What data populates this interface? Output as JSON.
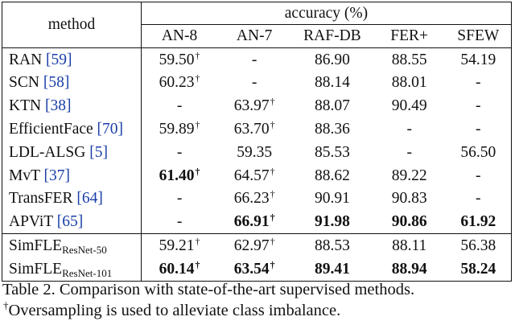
{
  "table": {
    "method_header": "method",
    "group_header": "accuracy (%)",
    "columns": [
      "AN-8",
      "AN-7",
      "RAF-DB",
      "FER+",
      "SFEW"
    ],
    "dagger": "†",
    "rows": [
      {
        "name": "RAN",
        "ref": "59",
        "cells": [
          {
            "v": "59.50",
            "sup": "†",
            "b": false
          },
          {
            "v": "-",
            "sup": "",
            "b": false
          },
          {
            "v": "86.90",
            "sup": "",
            "b": false
          },
          {
            "v": "88.55",
            "sup": "",
            "b": false
          },
          {
            "v": "54.19",
            "sup": "",
            "b": false
          }
        ]
      },
      {
        "name": "SCN",
        "ref": "58",
        "cells": [
          {
            "v": "60.23",
            "sup": "†",
            "b": false
          },
          {
            "v": "-",
            "sup": "",
            "b": false
          },
          {
            "v": "88.14",
            "sup": "",
            "b": false
          },
          {
            "v": "88.01",
            "sup": "",
            "b": false
          },
          {
            "v": "-",
            "sup": "",
            "b": false
          }
        ]
      },
      {
        "name": "KTN",
        "ref": "38",
        "cells": [
          {
            "v": "-",
            "sup": "",
            "b": false
          },
          {
            "v": "63.97",
            "sup": "†",
            "b": false
          },
          {
            "v": "88.07",
            "sup": "",
            "b": false
          },
          {
            "v": "90.49",
            "sup": "",
            "b": false
          },
          {
            "v": "-",
            "sup": "",
            "b": false
          }
        ]
      },
      {
        "name": "EfficientFace",
        "ref": "70",
        "cells": [
          {
            "v": "59.89",
            "sup": "†",
            "b": false
          },
          {
            "v": "63.70",
            "sup": "†",
            "b": false
          },
          {
            "v": "88.36",
            "sup": "",
            "b": false
          },
          {
            "v": "-",
            "sup": "",
            "b": false
          },
          {
            "v": "-",
            "sup": "",
            "b": false
          }
        ]
      },
      {
        "name": "LDL-ALSG",
        "ref": "5",
        "cells": [
          {
            "v": "-",
            "sup": "",
            "b": false
          },
          {
            "v": "59.35",
            "sup": "",
            "b": false
          },
          {
            "v": "85.53",
            "sup": "",
            "b": false
          },
          {
            "v": "-",
            "sup": "",
            "b": false
          },
          {
            "v": "56.50",
            "sup": "",
            "b": false
          }
        ]
      },
      {
        "name": "MvT",
        "ref": "37",
        "cells": [
          {
            "v": "61.40",
            "sup": "†",
            "b": true
          },
          {
            "v": "64.57",
            "sup": "†",
            "b": false
          },
          {
            "v": "88.62",
            "sup": "",
            "b": false
          },
          {
            "v": "89.22",
            "sup": "",
            "b": false
          },
          {
            "v": "-",
            "sup": "",
            "b": false
          }
        ]
      },
      {
        "name": "TransFER",
        "ref": "64",
        "cells": [
          {
            "v": "-",
            "sup": "",
            "b": false
          },
          {
            "v": "66.23",
            "sup": "†",
            "b": false
          },
          {
            "v": "90.91",
            "sup": "",
            "b": false
          },
          {
            "v": "90.83",
            "sup": "",
            "b": false
          },
          {
            "v": "-",
            "sup": "",
            "b": false
          }
        ]
      },
      {
        "name": "APViT",
        "ref": "65",
        "cells": [
          {
            "v": "-",
            "sup": "",
            "b": false
          },
          {
            "v": "66.91",
            "sup": "†",
            "b": true
          },
          {
            "v": "91.98",
            "sup": "",
            "b": true
          },
          {
            "v": "90.86",
            "sup": "",
            "b": true
          },
          {
            "v": "61.92",
            "sup": "",
            "b": true
          }
        ]
      }
    ],
    "ours": [
      {
        "name": "SimFLE",
        "sub": "ResNet-50",
        "cells": [
          {
            "v": "59.21",
            "sup": "†",
            "b": false
          },
          {
            "v": "62.97",
            "sup": "†",
            "b": false
          },
          {
            "v": "88.53",
            "sup": "",
            "b": false
          },
          {
            "v": "88.11",
            "sup": "",
            "b": false
          },
          {
            "v": "56.38",
            "sup": "",
            "b": false
          }
        ]
      },
      {
        "name": "SimFLE",
        "sub": "ResNet-101",
        "cells": [
          {
            "v": "60.14",
            "sup": "†",
            "b": true
          },
          {
            "v": "63.54",
            "sup": "†",
            "b": true
          },
          {
            "v": "89.41",
            "sup": "",
            "b": true
          },
          {
            "v": "88.94",
            "sup": "",
            "b": true
          },
          {
            "v": "58.24",
            "sup": "",
            "b": true
          }
        ]
      }
    ]
  },
  "caption": {
    "line1": "Table 2. Comparison with state-of-the-art supervised methods.",
    "dagger": "†",
    "line2": "Oversampling is used to alleviate class imbalance."
  }
}
